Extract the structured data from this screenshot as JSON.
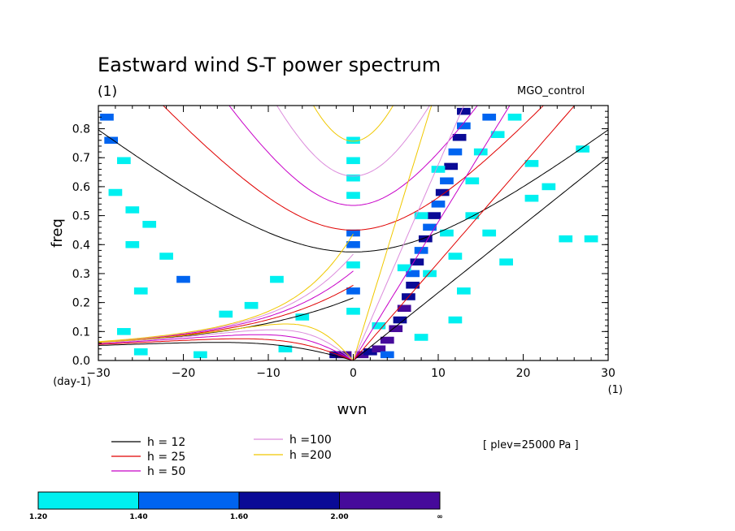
{
  "chart_data": {
    "type": "heatmap",
    "title": "Eastward wind S-T power spectrum",
    "subtitle": "(1)",
    "annotation": "MGO_control",
    "pressure_label": "[ plev=25000 Pa ]",
    "xlabel": "wvn",
    "ylabel": "freq",
    "x_unit": "(1)",
    "y_unit": "(day-1)",
    "xlim": [
      -30,
      30
    ],
    "ylim": [
      0,
      0.88
    ],
    "x_ticks": [
      -30,
      -20,
      -10,
      0,
      10,
      20,
      30
    ],
    "x_tick_labels": [
      "−30",
      "−20",
      "−10",
      "0",
      "10",
      "20",
      "30"
    ],
    "y_ticks": [
      0.0,
      0.1,
      0.2,
      0.3,
      0.4,
      0.5,
      0.6,
      0.7,
      0.8
    ],
    "y_tick_labels": [
      "0.0",
      "0.1",
      "0.2",
      "0.3",
      "0.4",
      "0.5",
      "0.6",
      "0.7",
      "0.8"
    ],
    "dispersion_curves": [
      {
        "name": "h = 12",
        "h": 12,
        "color": "#000000"
      },
      {
        "name": "h = 25",
        "h": 25,
        "color": "#e00000"
      },
      {
        "name": "h = 50",
        "h": 50,
        "color": "#c800c8"
      },
      {
        "name": "h =100",
        "h": 100,
        "color": "#dc8cdc"
      },
      {
        "name": "h =200",
        "h": 200,
        "color": "#f0c800"
      }
    ],
    "colorbar": {
      "levels": [
        "1.20",
        "1.40",
        "1.60",
        "2.00",
        "∞"
      ],
      "colors": [
        "#00f0f0",
        "#0064f0",
        "#0a0a96",
        "#460a9b"
      ]
    },
    "power_cells": [
      {
        "x": -29,
        "y": 0.84,
        "v": 1.5
      },
      {
        "x": -28.5,
        "y": 0.76,
        "v": 1.5
      },
      {
        "x": -27,
        "y": 0.69,
        "v": 1.3
      },
      {
        "x": -28,
        "y": 0.58,
        "v": 1.3
      },
      {
        "x": -26,
        "y": 0.4,
        "v": 1.3
      },
      {
        "x": -24,
        "y": 0.47,
        "v": 1.3
      },
      {
        "x": -20,
        "y": 0.28,
        "v": 1.5
      },
      {
        "x": -25,
        "y": 0.24,
        "v": 1.3
      },
      {
        "x": -22,
        "y": 0.36,
        "v": 1.3
      },
      {
        "x": -15,
        "y": 0.16,
        "v": 1.3
      },
      {
        "x": -12,
        "y": 0.19,
        "v": 1.3
      },
      {
        "x": -9,
        "y": 0.28,
        "v": 1.3
      },
      {
        "x": -27,
        "y": 0.1,
        "v": 1.3
      },
      {
        "x": -25,
        "y": 0.03,
        "v": 1.3
      },
      {
        "x": -18,
        "y": 0.02,
        "v": 1.3
      },
      {
        "x": -8,
        "y": 0.04,
        "v": 1.3
      },
      {
        "x": -6,
        "y": 0.15,
        "v": 1.3
      },
      {
        "x": -26,
        "y": 0.52,
        "v": 1.3
      },
      {
        "x": 0,
        "y": 0.76,
        "v": 1.3
      },
      {
        "x": 0,
        "y": 0.69,
        "v": 1.3
      },
      {
        "x": 0,
        "y": 0.63,
        "v": 1.3
      },
      {
        "x": 0,
        "y": 0.57,
        "v": 1.3
      },
      {
        "x": 0,
        "y": 0.44,
        "v": 1.5
      },
      {
        "x": 0,
        "y": 0.4,
        "v": 1.5
      },
      {
        "x": 0,
        "y": 0.33,
        "v": 1.3
      },
      {
        "x": 0,
        "y": 0.24,
        "v": 1.5
      },
      {
        "x": 0,
        "y": 0.17,
        "v": 1.3
      },
      {
        "x": -2,
        "y": 0.02,
        "v": 1.7
      },
      {
        "x": -1,
        "y": 0.02,
        "v": 2.2
      },
      {
        "x": 1,
        "y": 0.02,
        "v": 2.2
      },
      {
        "x": 2,
        "y": 0.03,
        "v": 1.7
      },
      {
        "x": 3,
        "y": 0.04,
        "v": 2.2
      },
      {
        "x": 4,
        "y": 0.07,
        "v": 2.2
      },
      {
        "x": 5,
        "y": 0.11,
        "v": 2.2
      },
      {
        "x": 5.5,
        "y": 0.14,
        "v": 1.7
      },
      {
        "x": 6,
        "y": 0.18,
        "v": 2.2
      },
      {
        "x": 6.5,
        "y": 0.22,
        "v": 1.7
      },
      {
        "x": 7,
        "y": 0.26,
        "v": 1.7
      },
      {
        "x": 7,
        "y": 0.3,
        "v": 1.5
      },
      {
        "x": 7.5,
        "y": 0.34,
        "v": 1.7
      },
      {
        "x": 8,
        "y": 0.38,
        "v": 1.5
      },
      {
        "x": 8.5,
        "y": 0.42,
        "v": 1.7
      },
      {
        "x": 9,
        "y": 0.46,
        "v": 1.5
      },
      {
        "x": 9.5,
        "y": 0.5,
        "v": 1.7
      },
      {
        "x": 10,
        "y": 0.54,
        "v": 1.5
      },
      {
        "x": 10.5,
        "y": 0.58,
        "v": 1.7
      },
      {
        "x": 11,
        "y": 0.62,
        "v": 1.5
      },
      {
        "x": 11.5,
        "y": 0.67,
        "v": 1.7
      },
      {
        "x": 12,
        "y": 0.72,
        "v": 1.5
      },
      {
        "x": 12.5,
        "y": 0.77,
        "v": 1.7
      },
      {
        "x": 13,
        "y": 0.81,
        "v": 1.5
      },
      {
        "x": 13,
        "y": 0.86,
        "v": 1.7
      },
      {
        "x": 6,
        "y": 0.32,
        "v": 1.3
      },
      {
        "x": 9,
        "y": 0.3,
        "v": 1.3
      },
      {
        "x": 8,
        "y": 0.5,
        "v": 1.3
      },
      {
        "x": 11,
        "y": 0.44,
        "v": 1.3
      },
      {
        "x": 10,
        "y": 0.66,
        "v": 1.3
      },
      {
        "x": 14,
        "y": 0.62,
        "v": 1.3
      },
      {
        "x": 15,
        "y": 0.72,
        "v": 1.3
      },
      {
        "x": 16,
        "y": 0.84,
        "v": 1.5
      },
      {
        "x": 17,
        "y": 0.78,
        "v": 1.3
      },
      {
        "x": 19,
        "y": 0.84,
        "v": 1.3
      },
      {
        "x": 21,
        "y": 0.68,
        "v": 1.3
      },
      {
        "x": 14,
        "y": 0.5,
        "v": 1.3
      },
      {
        "x": 12,
        "y": 0.36,
        "v": 1.3
      },
      {
        "x": 16,
        "y": 0.44,
        "v": 1.3
      },
      {
        "x": 21,
        "y": 0.56,
        "v": 1.3
      },
      {
        "x": 23,
        "y": 0.6,
        "v": 1.3
      },
      {
        "x": 25,
        "y": 0.42,
        "v": 1.3
      },
      {
        "x": 27,
        "y": 0.73,
        "v": 1.3
      },
      {
        "x": 28,
        "y": 0.42,
        "v": 1.3
      },
      {
        "x": 18,
        "y": 0.34,
        "v": 1.3
      },
      {
        "x": 3,
        "y": 0.12,
        "v": 1.3
      },
      {
        "x": 8,
        "y": 0.08,
        "v": 1.3
      },
      {
        "x": 12,
        "y": 0.14,
        "v": 1.3
      },
      {
        "x": 13,
        "y": 0.24,
        "v": 1.3
      },
      {
        "x": 4,
        "y": 0.02,
        "v": 1.5
      }
    ]
  }
}
